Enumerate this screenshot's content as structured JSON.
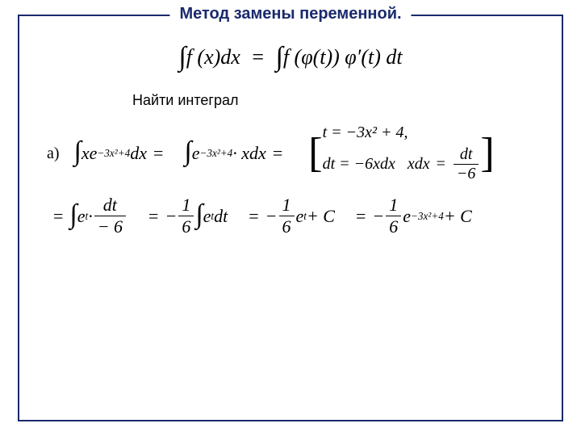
{
  "title": "Метод замены переменной.",
  "subtitle": "Найти интеграл",
  "label_a": "а)",
  "formula": {
    "main_left": "f (x)dx",
    "main_right": "f (φ(t)) φ′(t) dt",
    "eq": "="
  },
  "row1": {
    "seg1": "xe",
    "seg1_exp": "−3x²+4",
    "seg1_tail": "dx",
    "seg2": "e",
    "seg2_exp": "−3x²+4",
    "seg2_tail": "· xdx"
  },
  "bracket": {
    "t_line": "t = −3x² + 4,",
    "dt_left": "dt = −6xdx",
    "dt_mid": "xdx",
    "frac_n": "dt",
    "frac_d": "−6"
  },
  "row2": {
    "seg1_a": "e",
    "seg1_exp": "t",
    "seg1_dot": "·",
    "seg1_frac_n": "dt",
    "seg1_frac_d": "− 6",
    "seg2_coef_n": "1",
    "seg2_coef_d": "6",
    "seg2_int": "e",
    "seg2_exp": "t",
    "seg2_tail": "dt",
    "seg3_coef_n": "1",
    "seg3_coef_d": "6",
    "seg3_e": "e",
    "seg3_exp": "t",
    "seg3_tail": "+ C",
    "seg4_coef_n": "1",
    "seg4_coef_d": "6",
    "seg4_e": "e",
    "seg4_exp": "−3x²+4",
    "seg4_tail": "+ C",
    "minus": "−",
    "eq": "="
  },
  "colors": {
    "frame": "#1a2a6c",
    "title": "#1a2a6c",
    "text": "#000000",
    "background": "#ffffff"
  }
}
